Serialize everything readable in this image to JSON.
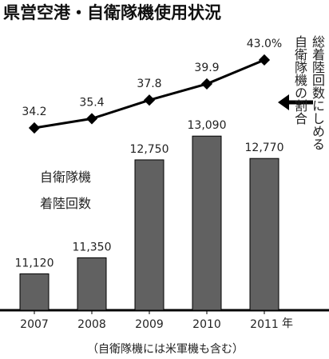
{
  "chart_data": {
    "type": "bar",
    "title": "県営空港・自衛隊機使用状況",
    "categories": [
      "2007",
      "2008",
      "2009",
      "2010",
      "2011"
    ],
    "x_unit": "年",
    "series": [
      {
        "name": "自衛隊機着陸回数",
        "type": "bar",
        "color": "#616161",
        "values": [
          11120,
          11350,
          12750,
          13090,
          12770
        ],
        "value_labels": [
          "11,120",
          "11,350",
          "12,750",
          "13,090",
          "12,770"
        ]
      },
      {
        "name": "総着陸回数にしめる自衛隊機の割合",
        "type": "line",
        "axis": "y2",
        "color": "#000000",
        "values": [
          34.2,
          35.4,
          37.8,
          39.9,
          43.0
        ],
        "value_labels": [
          "34.2",
          "35.4",
          "37.8",
          "39.9",
          "43.0%"
        ]
      }
    ],
    "ylim": [
      10600,
      14350
    ],
    "y2lim": [
      10.6,
      44.55
    ],
    "note": "（自衛隊機には米軍機も含む）"
  }
}
